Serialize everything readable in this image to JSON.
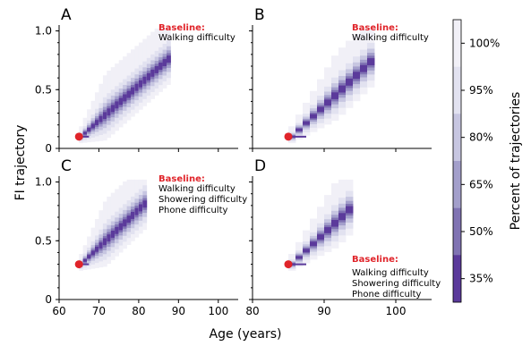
{
  "figure": {
    "xlabel": "Age (years)",
    "ylabel": "FI trajectory",
    "colorbar_label": "Percent of trajectories",
    "colors": {
      "band_35": "#5b3a9b",
      "band_50": "#8073b3",
      "band_65": "#a39fcb",
      "band_80": "#c7c6e1",
      "band_95": "#e2e2f0",
      "band_100": "#f1f0f7",
      "baseline_marker": "#e0242a"
    }
  },
  "chart_data": [
    {
      "type": "heatmap",
      "panel": "A",
      "baseline_heading": "Baseline:",
      "baseline_lines": [
        "Walking difficulty"
      ],
      "baseline_point": {
        "age": 65,
        "fi": 0.1
      },
      "xlim": [
        60,
        105
      ],
      "ylim": [
        0,
        1.05
      ],
      "xticks": [],
      "yticks": [
        "0",
        "0.5",
        "1.0"
      ],
      "age_end": 88,
      "median_slope": 0.03
    },
    {
      "type": "heatmap",
      "panel": "B",
      "baseline_heading": "Baseline:",
      "baseline_lines": [
        "Walking difficulty"
      ],
      "baseline_point": {
        "age": 85,
        "fi": 0.1
      },
      "xlim": [
        80,
        105
      ],
      "ylim": [
        0,
        1.05
      ],
      "xticks": [],
      "yticks": [],
      "age_end": 97,
      "median_slope": 0.058
    },
    {
      "type": "heatmap",
      "panel": "C",
      "baseline_heading": "Baseline:",
      "baseline_lines": [
        "Walking difficulty",
        "Showering difficulty",
        "Phone difficulty"
      ],
      "baseline_point": {
        "age": 65,
        "fi": 0.3
      },
      "xlim": [
        60,
        105
      ],
      "ylim": [
        0,
        1.05
      ],
      "xticks": [
        "60",
        "70",
        "80",
        "90",
        "100"
      ],
      "yticks": [
        "0",
        "0.5",
        "1.0"
      ],
      "age_end": 82,
      "median_slope": 0.032
    },
    {
      "type": "heatmap",
      "panel": "D",
      "baseline_heading": "Baseline:",
      "baseline_lines": [
        "Walking difficulty",
        "Showering difficulty",
        "Phone difficulty"
      ],
      "baseline_point": {
        "age": 85,
        "fi": 0.3
      },
      "xlim": [
        80,
        105
      ],
      "ylim": [
        0,
        1.05
      ],
      "xticks": [
        "80",
        "90",
        "100"
      ],
      "yticks": [],
      "age_end": 94,
      "median_slope": 0.058
    }
  ],
  "colorbar": {
    "ticks": [
      "100%",
      "95%",
      "80%",
      "65%",
      "50%",
      "35%"
    ],
    "levels": [
      100,
      95,
      80,
      65,
      50,
      35
    ]
  }
}
